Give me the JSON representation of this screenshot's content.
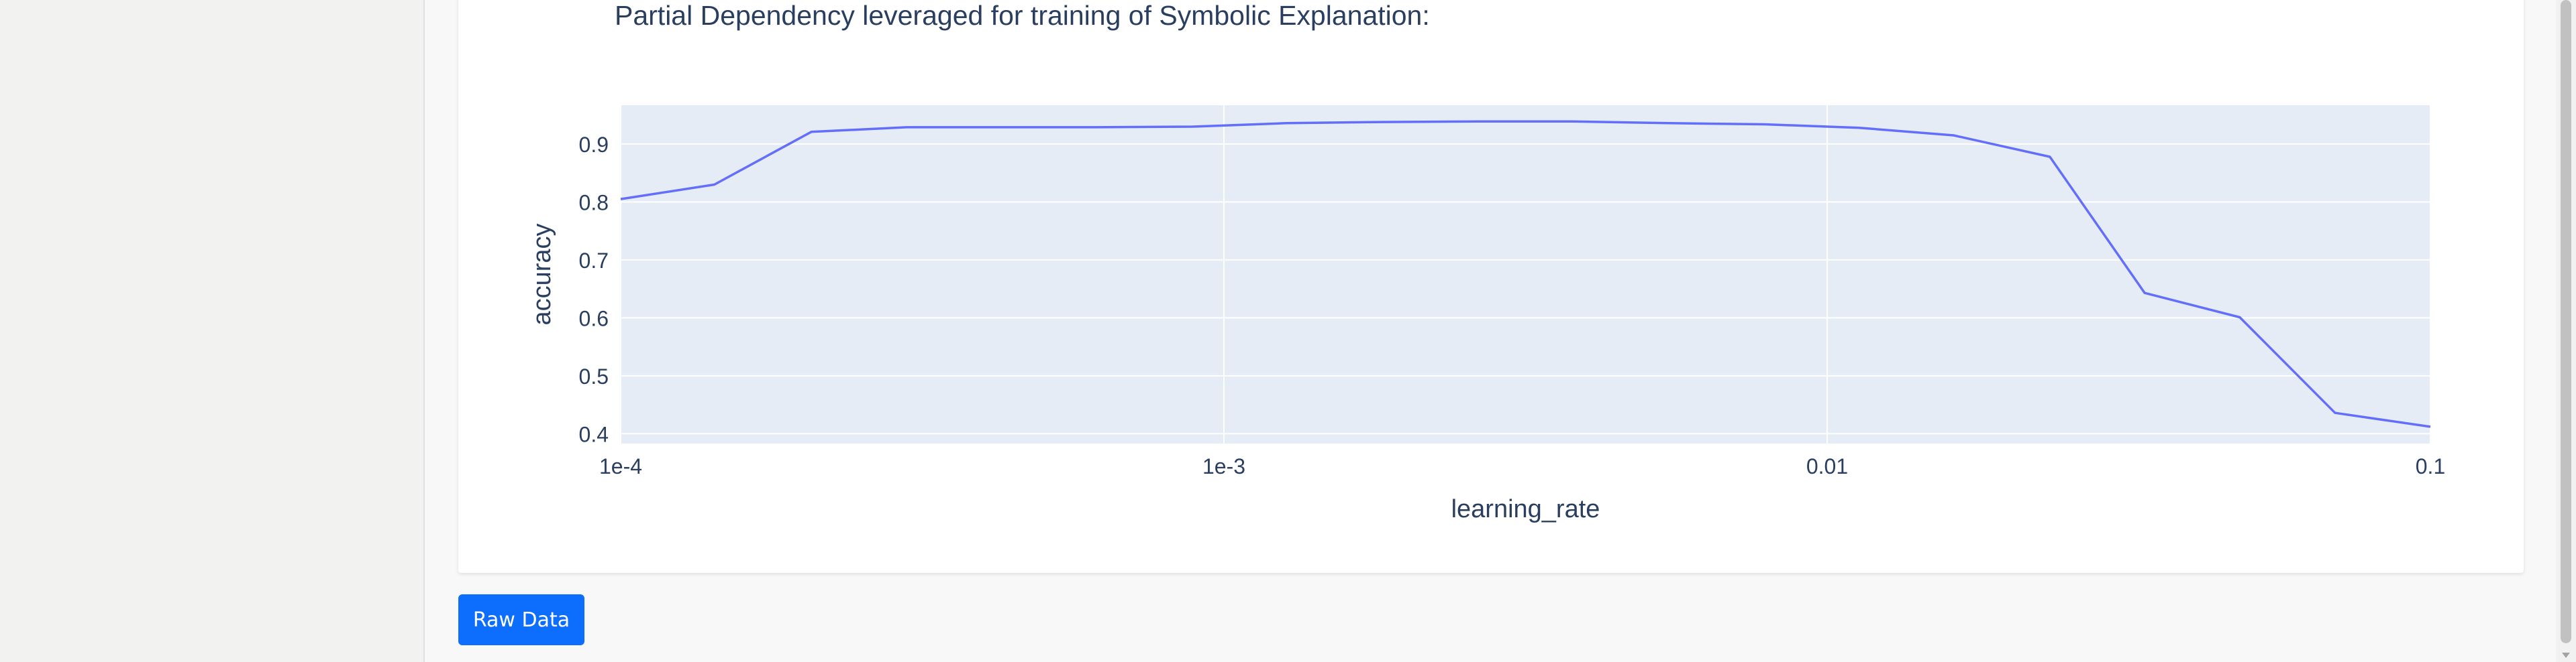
{
  "title": "Partial Dependency leveraged for training of Symbolic Explanation:",
  "raw_data_label": "Raw Data",
  "colors": {
    "line": "#636efa",
    "plot_bg": "#e5ecf6",
    "text": "#2a3f5f",
    "button": "#0d6efd"
  },
  "chart_data": {
    "type": "line",
    "title": "Partial Dependency leveraged for training of Symbolic Explanation:",
    "xlabel": "learning_rate",
    "ylabel": "accuracy",
    "x_scale": "log",
    "xlim": [
      0.0001,
      0.1
    ],
    "ylim": [
      0.383,
      0.967
    ],
    "x_ticks": [
      {
        "value": 0.0001,
        "label": "1e-4"
      },
      {
        "value": 0.001,
        "label": "1e-3"
      },
      {
        "value": 0.01,
        "label": "0.01"
      },
      {
        "value": 0.1,
        "label": "0.1"
      }
    ],
    "y_ticks": [
      {
        "value": 0.4,
        "label": "0.4"
      },
      {
        "value": 0.5,
        "label": "0.5"
      },
      {
        "value": 0.6,
        "label": "0.6"
      },
      {
        "value": 0.7,
        "label": "0.7"
      },
      {
        "value": 0.8,
        "label": "0.8"
      },
      {
        "value": 0.9,
        "label": "0.9"
      }
    ],
    "grid": true,
    "series": [
      {
        "x": [
          0.0001,
          0.000143,
          0.000207,
          0.000298,
          0.000428,
          0.000616,
          0.000886,
          0.00127,
          0.00183,
          0.00264,
          0.00379,
          0.00546,
          0.00785,
          0.0113,
          0.0162,
          0.0234,
          0.0336,
          0.0483,
          0.0695,
          0.1
        ],
        "y": [
          0.805,
          0.83,
          0.921,
          0.929,
          0.929,
          0.929,
          0.93,
          0.936,
          0.938,
          0.939,
          0.939,
          0.936,
          0.934,
          0.928,
          0.915,
          0.878,
          0.643,
          0.601,
          0.436,
          0.412
        ]
      }
    ]
  }
}
